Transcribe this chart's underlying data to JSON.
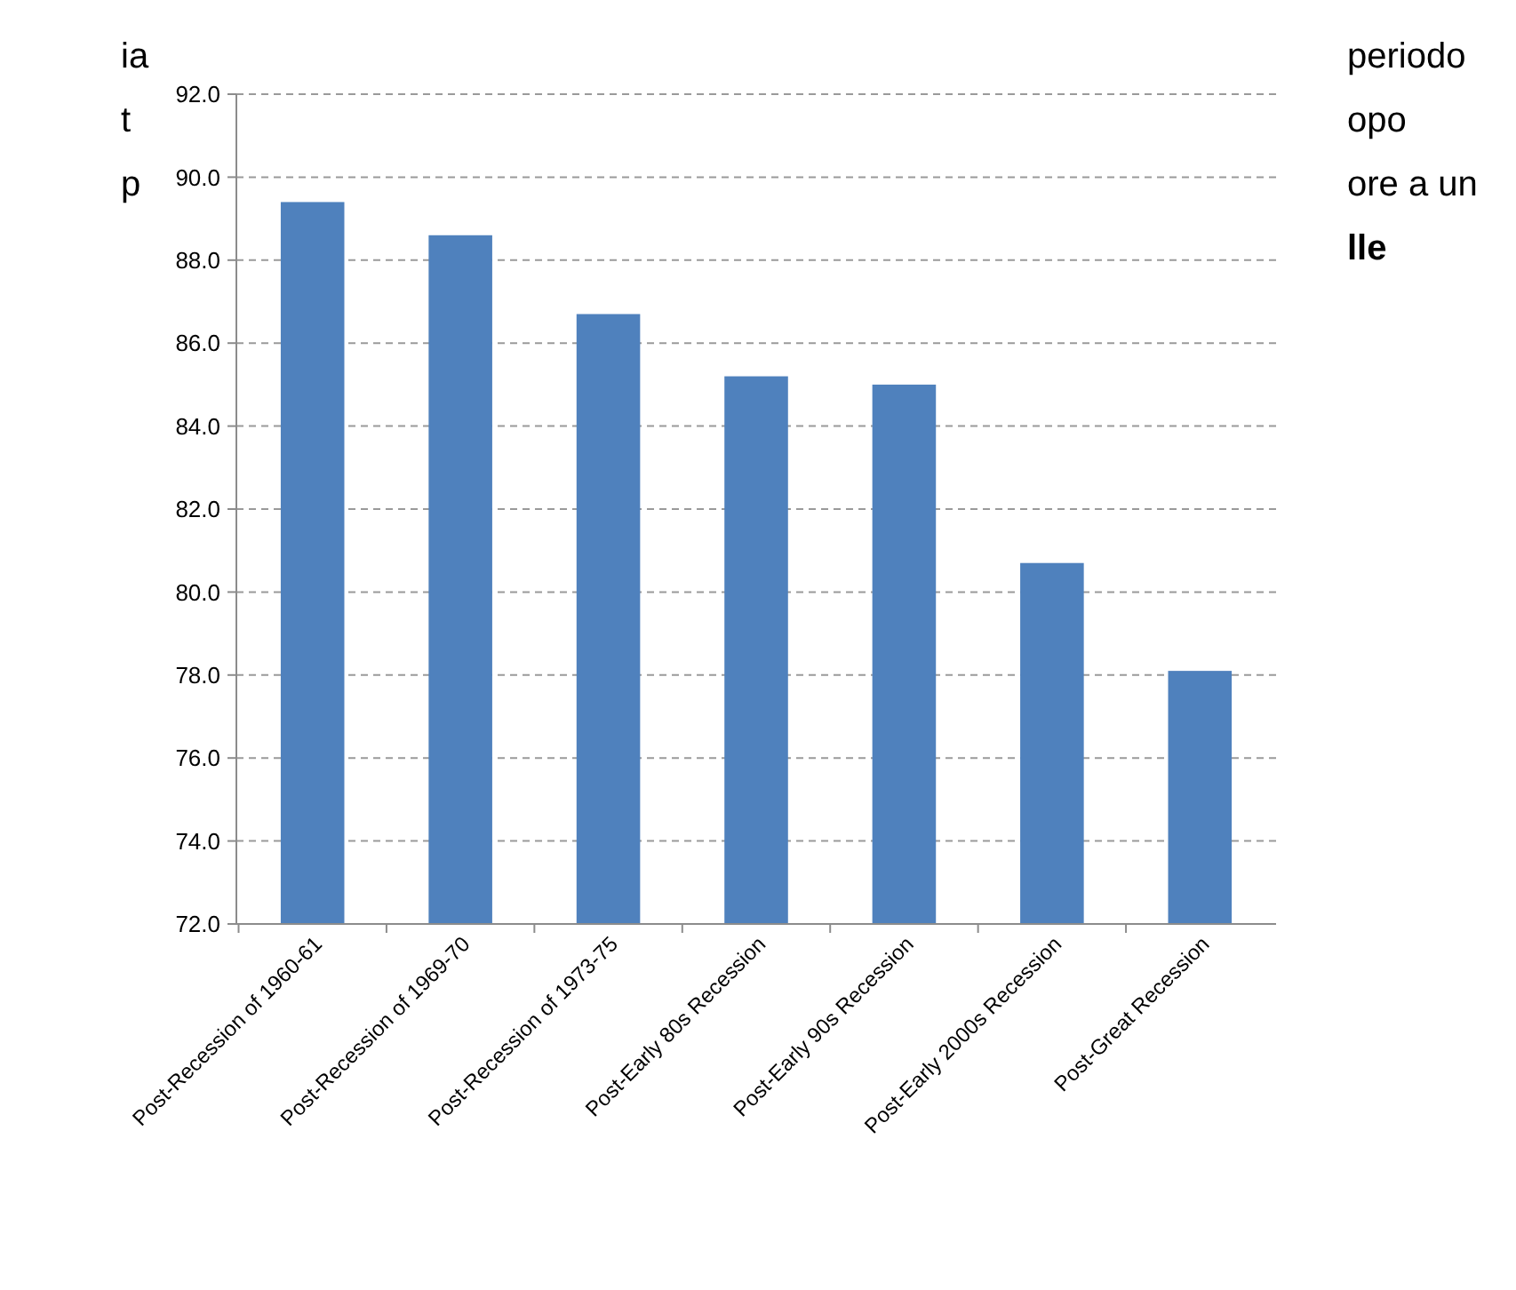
{
  "chart_data": {
    "type": "bar",
    "categories": [
      "Post-Recession of 1960-61",
      "Post-Recession of 1969-70",
      "Post-Recession of 1973-75",
      "Post-Early 80s Recession",
      "Post-Early 90s Recession",
      "Post-Early 2000s Recession",
      "Post-Great Recession"
    ],
    "values": [
      89.4,
      88.6,
      86.7,
      85.2,
      85.0,
      80.7,
      78.1
    ],
    "color": "#4f81bd",
    "ylim": [
      72,
      92
    ],
    "yticks": [
      {
        "value": 72,
        "label": "72.0"
      },
      {
        "value": 74,
        "label": "74.0"
      },
      {
        "value": 76,
        "label": "76.0"
      },
      {
        "value": 78,
        "label": "78.0"
      },
      {
        "value": 80,
        "label": "80.0"
      },
      {
        "value": 82,
        "label": "82.0"
      },
      {
        "value": 84,
        "label": "84.0"
      },
      {
        "value": 86,
        "label": "86.0"
      },
      {
        "value": 88,
        "label": "88.0"
      },
      {
        "value": 90,
        "label": "90.0"
      },
      {
        "value": 92,
        "label": "92.0"
      }
    ],
    "grid": "y",
    "annotations": [
      "ia",
      "periodo",
      "t",
      "opo",
      "p",
      "ore a un",
      "lle"
    ]
  }
}
